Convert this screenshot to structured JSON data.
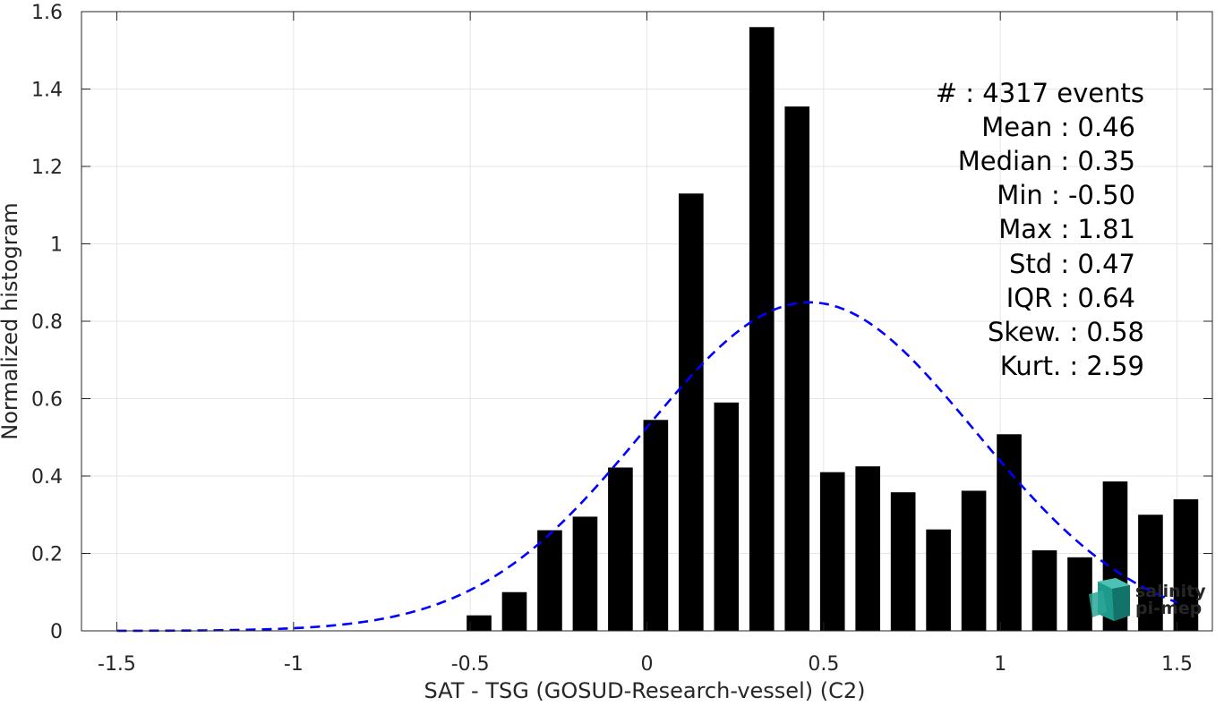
{
  "chart_data": {
    "type": "bar",
    "xlabel": "SAT - TSG (GOSUD-Research-vessel) (C2)",
    "ylabel": "Normalized histogram",
    "xlim": [
      -1.6,
      1.6
    ],
    "ylim": [
      0,
      1.6
    ],
    "grid": true,
    "x_ticks": [
      -1.5,
      -1,
      -0.5,
      0,
      0.5,
      1,
      1.5
    ],
    "x_tick_labels": [
      "-1.5",
      "-1",
      "-0.5",
      "0",
      "0.5",
      "1",
      "1.5"
    ],
    "y_ticks": [
      0,
      0.2,
      0.4,
      0.6,
      0.8,
      1,
      1.2,
      1.4,
      1.6
    ],
    "y_tick_labels": [
      "0",
      "0.2",
      "0.4",
      "0.6",
      "0.8",
      "1",
      "1.2",
      "1.4",
      "1.6"
    ],
    "bar_width": 0.07,
    "bar_color": "#000000",
    "bars": {
      "x": [
        -0.475,
        -0.375,
        -0.275,
        -0.175,
        -0.075,
        0.025,
        0.125,
        0.225,
        0.325,
        0.425,
        0.525,
        0.625,
        0.725,
        0.825,
        0.925,
        1.025,
        1.125,
        1.225,
        1.325,
        1.425,
        1.525
      ],
      "values": [
        0.04,
        0.1,
        0.26,
        0.295,
        0.422,
        0.545,
        1.13,
        0.59,
        1.56,
        1.355,
        0.41,
        0.425,
        0.358,
        0.262,
        0.362,
        0.508,
        0.208,
        0.19,
        0.386,
        0.3,
        0.34
      ]
    },
    "fit_curve": {
      "style": "dashed",
      "color": "#0000ff",
      "mean": 0.46,
      "std": 0.47
    },
    "stats": [
      {
        "label": "#  : 4317 events"
      },
      {
        "label": "Mean : 0.46"
      },
      {
        "label": "Median : 0.35"
      },
      {
        "label": "Min : -0.50"
      },
      {
        "label": "Max : 1.81"
      },
      {
        "label": "Std : 0.47"
      },
      {
        "label": "IQR : 0.64"
      },
      {
        "label": "Skew. : 0.58"
      },
      {
        "label": "Kurt. : 2.59"
      }
    ]
  },
  "logo": {
    "line1": "salinity",
    "line2": "pi-mep",
    "color1": "#1aa596",
    "color2": "#136a63"
  }
}
